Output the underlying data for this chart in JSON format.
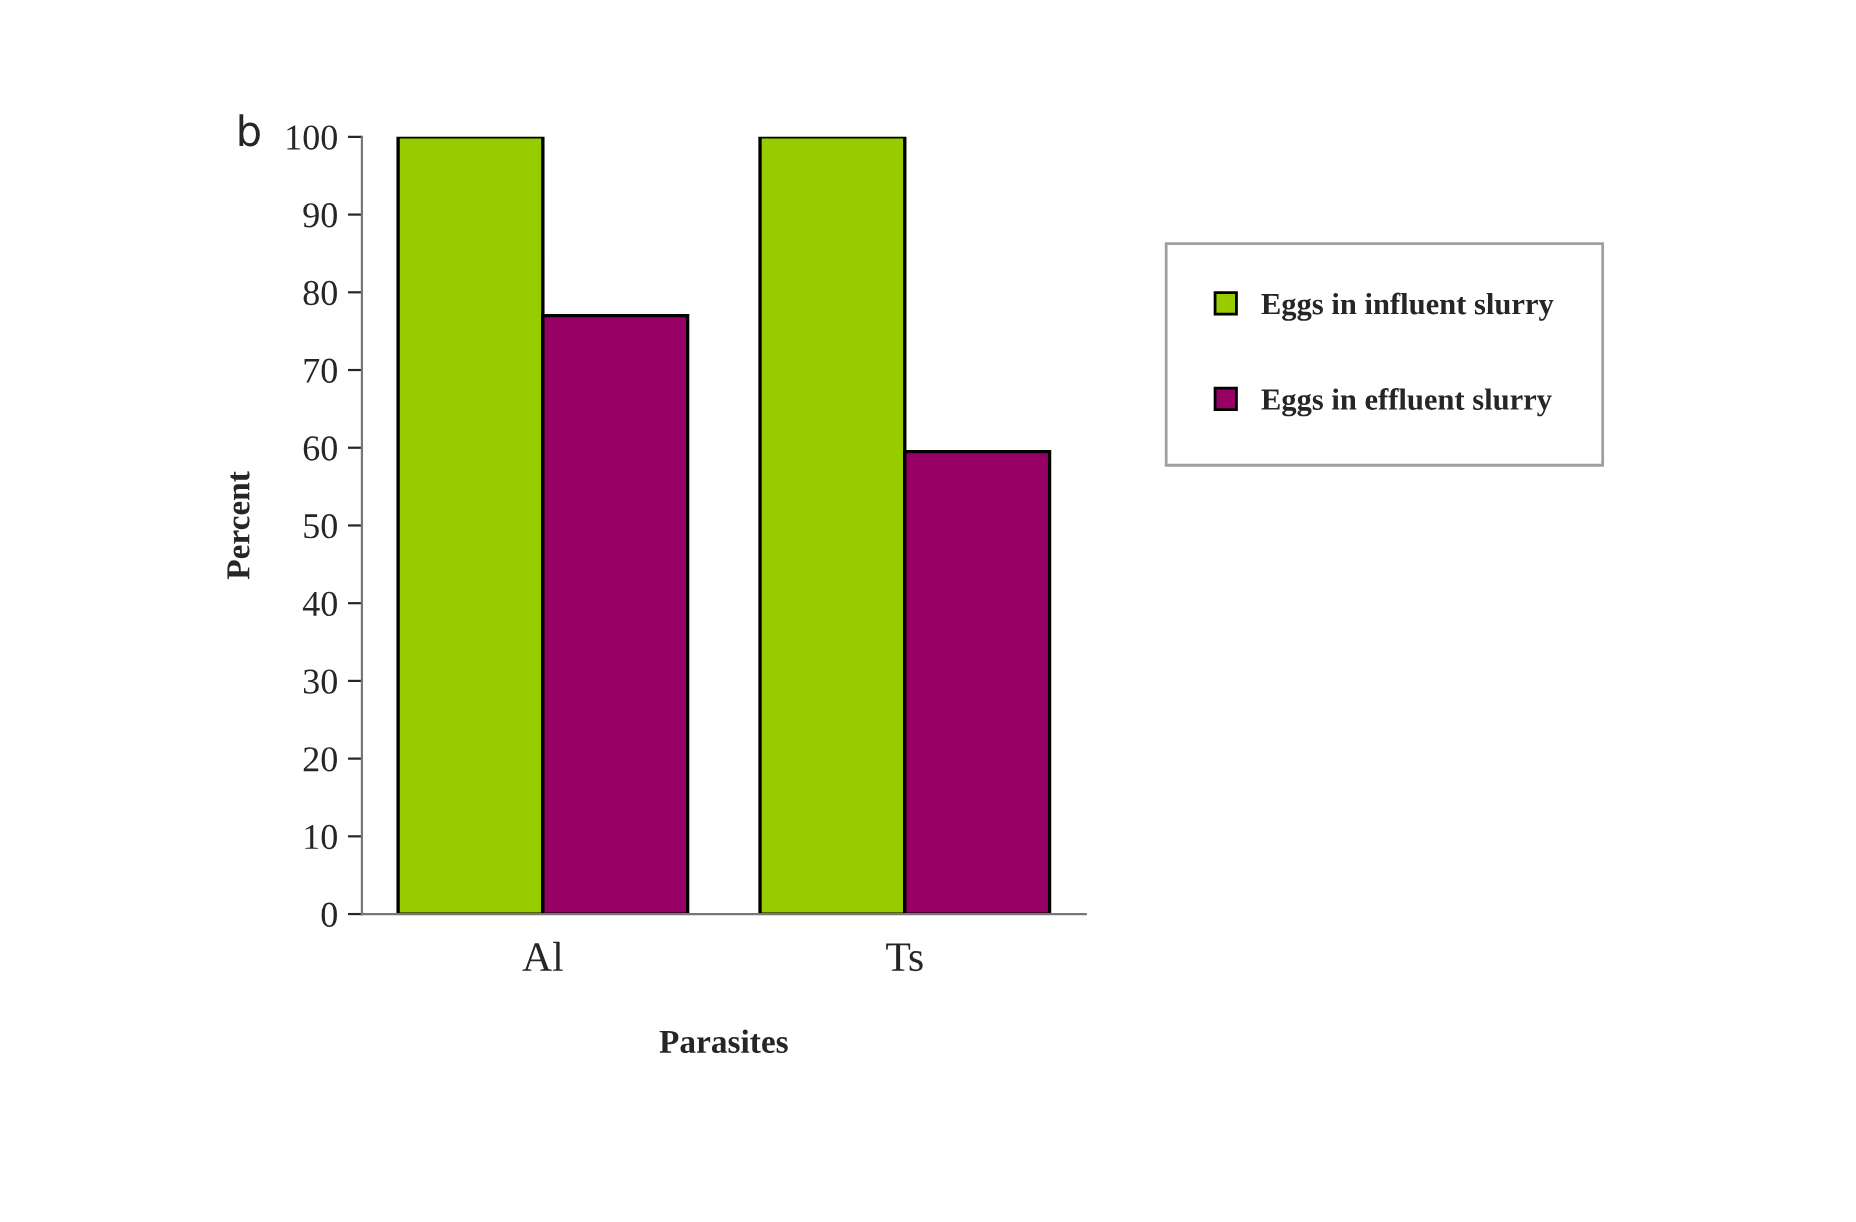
{
  "chart_data": {
    "type": "bar",
    "xlabel": "Parasites",
    "ylabel": "Percent",
    "annotations": [
      "b"
    ],
    "categories": [
      "Al",
      "Ts"
    ],
    "series": [
      {
        "name": "Eggs in influent slurry",
        "color": "#99cc00",
        "values": [
          100,
          100
        ]
      },
      {
        "name": "Eggs in effluent slurry",
        "color": "#990066",
        "values": [
          77,
          59.5
        ]
      }
    ],
    "ylim": [
      0,
      100
    ],
    "yticks": [
      0,
      10,
      20,
      30,
      40,
      50,
      60,
      70,
      80,
      90,
      100
    ],
    "grid": false,
    "legend": "right"
  }
}
